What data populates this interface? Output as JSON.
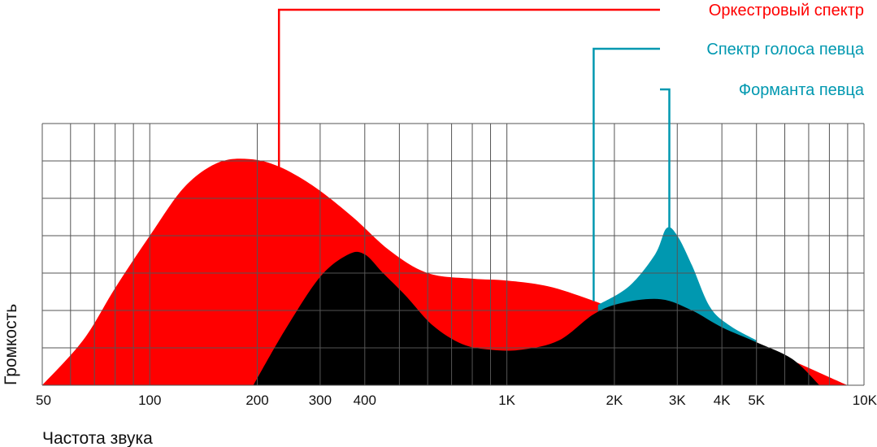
{
  "chart_data": {
    "type": "area",
    "xscale": "log",
    "xlim": [
      50,
      10000
    ],
    "ylim": [
      0,
      7
    ],
    "grid": true,
    "xlabel": "Частота звука",
    "ylabel": "Громкость",
    "x_ticks": [
      {
        "value": 50,
        "label": "50"
      },
      {
        "value": 100,
        "label": "100"
      },
      {
        "value": 200,
        "label": "200"
      },
      {
        "value": 300,
        "label": "300"
      },
      {
        "value": 400,
        "label": "400"
      },
      {
        "value": 1000,
        "label": "1K"
      },
      {
        "value": 2000,
        "label": "2K"
      },
      {
        "value": 3000,
        "label": "3K"
      },
      {
        "value": 4000,
        "label": "4K"
      },
      {
        "value": 5000,
        "label": "5K"
      },
      {
        "value": 10000,
        "label": "10K"
      }
    ],
    "series": [
      {
        "name": "Оркестровый спектр",
        "color": "#ff0000",
        "points": [
          [
            50,
            0
          ],
          [
            65,
            1.2
          ],
          [
            80,
            2.6
          ],
          [
            100,
            4.0
          ],
          [
            125,
            5.3
          ],
          [
            155,
            5.95
          ],
          [
            190,
            6.05
          ],
          [
            230,
            5.85
          ],
          [
            290,
            5.3
          ],
          [
            370,
            4.5
          ],
          [
            470,
            3.6
          ],
          [
            600,
            3.0
          ],
          [
            800,
            2.85
          ],
          [
            1000,
            2.8
          ],
          [
            1300,
            2.65
          ],
          [
            1700,
            2.3
          ],
          [
            2200,
            1.9
          ],
          [
            3000,
            1.5
          ],
          [
            4000,
            1.2
          ],
          [
            5000,
            1.05
          ],
          [
            6500,
            0.6
          ],
          [
            8500,
            0.1
          ],
          [
            9000,
            0
          ]
        ]
      },
      {
        "name": "Спектр голоса певца",
        "color": "#000000",
        "points": [
          [
            195,
            0
          ],
          [
            240,
            1.5
          ],
          [
            300,
            2.9
          ],
          [
            360,
            3.5
          ],
          [
            400,
            3.5
          ],
          [
            450,
            3.0
          ],
          [
            520,
            2.4
          ],
          [
            620,
            1.6
          ],
          [
            750,
            1.1
          ],
          [
            900,
            0.95
          ],
          [
            1100,
            0.95
          ],
          [
            1400,
            1.2
          ],
          [
            1750,
            1.9
          ],
          [
            2100,
            2.2
          ],
          [
            2700,
            2.3
          ],
          [
            3300,
            2.0
          ],
          [
            4000,
            1.55
          ],
          [
            5000,
            1.15
          ],
          [
            6300,
            0.7
          ],
          [
            7500,
            0
          ]
        ]
      },
      {
        "name": "Форманта певца",
        "color": "#0098b0",
        "points": [
          [
            1800,
            2.15
          ],
          [
            2200,
            2.65
          ],
          [
            2600,
            3.5
          ],
          [
            2800,
            4.2
          ],
          [
            3000,
            4.0
          ],
          [
            3300,
            3.2
          ],
          [
            3700,
            2.1
          ],
          [
            4200,
            1.6
          ],
          [
            5000,
            1.2
          ]
        ]
      }
    ]
  },
  "annotations": [
    {
      "text": "Оркестровый спектр",
      "color": "#ff0000",
      "target_x": 230
    },
    {
      "text": "Спектр голоса певца",
      "color": "#0098b0",
      "target_x": 1750
    },
    {
      "text": "Форманта певца",
      "color": "#0098b0",
      "target_x": 2850
    }
  ]
}
